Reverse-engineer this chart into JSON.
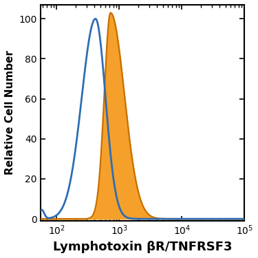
{
  "xlabel": "Lymphotoxin βR/TNFRSF3",
  "ylabel": "Relative Cell Number",
  "xlim_log": [
    55,
    100000
  ],
  "ylim": [
    -1,
    107
  ],
  "yticks": [
    0,
    20,
    40,
    60,
    80,
    100
  ],
  "xtick_locs": [
    100,
    1000,
    10000,
    100000
  ],
  "xtick_labels": [
    "10$^2$",
    "10$^3$",
    "10$^4$",
    "10$^5$"
  ],
  "blue_color": "#2E6DB4",
  "orange_color": "#F5A02A",
  "orange_edge_color": "#C87000",
  "background_color": "#FFFFFF",
  "line_width": 2.0,
  "xlabel_fontsize": 13,
  "ylabel_fontsize": 11,
  "tick_fontsize": 10,
  "fig_width": 3.75,
  "fig_height": 3.75,
  "dpi": 100
}
